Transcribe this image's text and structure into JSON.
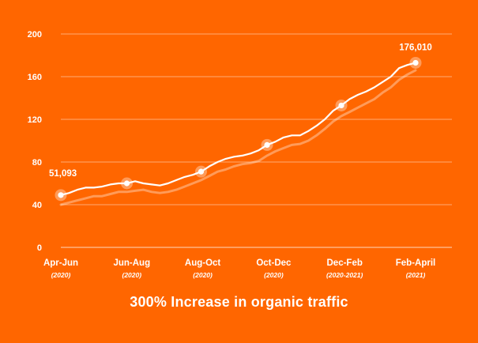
{
  "chart_data": {
    "type": "line",
    "title": "300% Increase in organic traffic",
    "ylim": [
      0,
      200
    ],
    "yticks": [
      0,
      40,
      80,
      120,
      160,
      200
    ],
    "xticks": [
      {
        "label": "Apr-Jun",
        "sub": "(2020)"
      },
      {
        "label": "Jun-Aug",
        "sub": "(2020)"
      },
      {
        "label": "Aug-Oct",
        "sub": "(2020)"
      },
      {
        "label": "Oct-Dec",
        "sub": "(2020)"
      },
      {
        "label": "Dec-Feb",
        "sub": "(2020-2021)"
      },
      {
        "label": "Feb-April",
        "sub": "(2021)"
      }
    ],
    "grid": true,
    "series": [
      {
        "values": [
          49,
          51,
          54,
          56,
          56,
          57,
          59,
          60,
          60,
          62,
          60,
          59,
          58,
          60,
          63,
          66,
          68,
          71,
          76,
          80,
          83,
          85,
          86,
          88,
          91,
          96,
          99,
          103,
          105,
          105,
          109,
          114,
          120,
          128,
          133,
          139,
          143,
          146,
          150,
          155,
          160,
          168,
          171,
          173
        ]
      },
      {
        "values": [
          40,
          42,
          44,
          46,
          48,
          48,
          50,
          52,
          52,
          53,
          54,
          52,
          51,
          52,
          54,
          57,
          60,
          63,
          67,
          71,
          73,
          76,
          78,
          79,
          81,
          86,
          90,
          93,
          96,
          97,
          100,
          105,
          111,
          118,
          123,
          127,
          131,
          135,
          139,
          145,
          150,
          157,
          162,
          166
        ]
      }
    ],
    "highlight_indices": [
      0,
      8,
      17,
      25,
      34,
      43
    ],
    "annotations": [
      {
        "text": "51,093",
        "index": 0
      },
      {
        "text": "176,010",
        "index": 43
      }
    ]
  }
}
